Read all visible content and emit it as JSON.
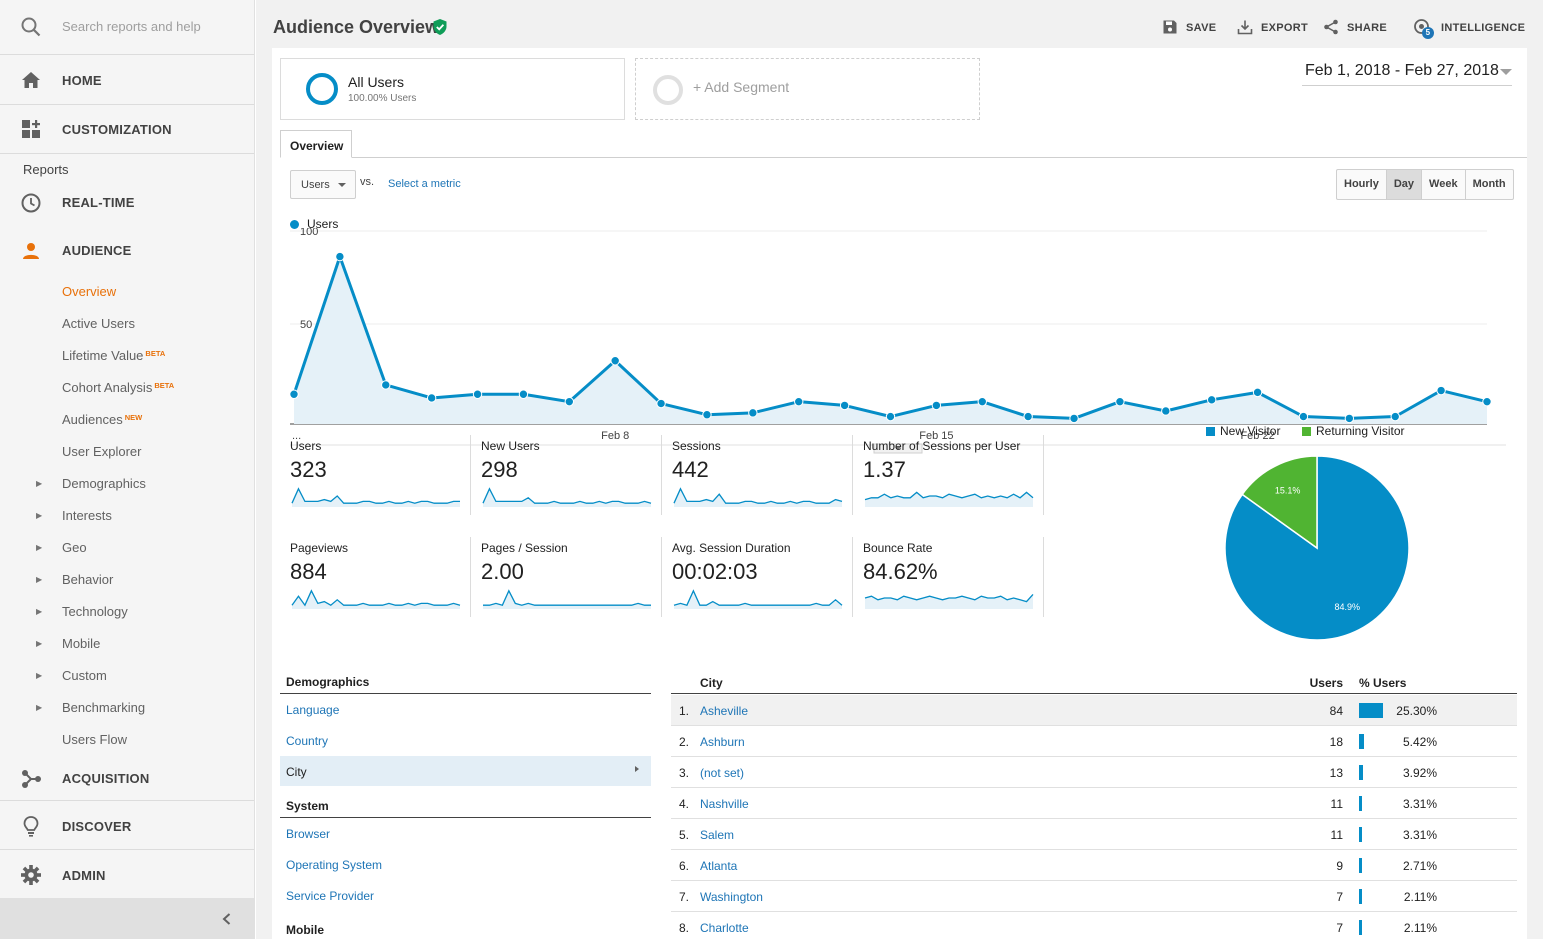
{
  "search": {
    "placeholder": "Search reports and help"
  },
  "nav": {
    "home": "HOME",
    "customization": "CUSTOMIZATION",
    "reports_label": "Reports",
    "realtime": "REAL-TIME",
    "audience": "AUDIENCE",
    "audience_items": {
      "overview": "Overview",
      "active_users": "Active Users",
      "lifetime_value": "Lifetime Value",
      "lifetime_value_badge": "BETA",
      "cohort_analysis": "Cohort Analysis",
      "cohort_analysis_badge": "BETA",
      "audiences": "Audiences",
      "audiences_badge": "NEW",
      "user_explorer": "User Explorer",
      "demographics": "Demographics",
      "interests": "Interests",
      "geo": "Geo",
      "behavior": "Behavior",
      "technology": "Technology",
      "mobile": "Mobile",
      "custom": "Custom",
      "benchmarking": "Benchmarking",
      "users_flow": "Users Flow"
    },
    "acquisition": "ACQUISITION",
    "discover": "DISCOVER",
    "admin": "ADMIN"
  },
  "header": {
    "title": "Audience Overview",
    "save": "SAVE",
    "export": "EXPORT",
    "share": "SHARE",
    "intelligence": "INTELLIGENCE",
    "intelligence_count": "5"
  },
  "segments": {
    "all_users": "All Users",
    "all_users_pct": "100.00% Users",
    "add_segment": "+ Add Segment"
  },
  "date_range": "Feb 1, 2018 - Feb 27, 2018",
  "tabs": {
    "overview": "Overview"
  },
  "controls": {
    "metric": "Users",
    "vs": "vs.",
    "select_metric": "Select a metric",
    "hourly": "Hourly",
    "day": "Day",
    "week": "Week",
    "month": "Month"
  },
  "colors": {
    "accent": "#058dc7",
    "new_visitor": "#058dc7",
    "returning_visitor": "#50b432",
    "nav_active": "#e8710a",
    "link": "#1e75b6"
  },
  "chart_data": [
    {
      "type": "area",
      "series": [
        {
          "name": "Users",
          "values": [
            16,
            90,
            21,
            14,
            16,
            16,
            12,
            34,
            11,
            5,
            6,
            12,
            10,
            4,
            10,
            12,
            4,
            3,
            12,
            7,
            13,
            17,
            4,
            3,
            4,
            18,
            12
          ]
        }
      ],
      "x": [
        "Feb 1",
        "Feb 2",
        "Feb 3",
        "Feb 4",
        "Feb 5",
        "Feb 6",
        "Feb 7",
        "Feb 8",
        "Feb 9",
        "Feb 10",
        "Feb 11",
        "Feb 12",
        "Feb 13",
        "Feb 14",
        "Feb 15",
        "Feb 16",
        "Feb 17",
        "Feb 18",
        "Feb 19",
        "Feb 20",
        "Feb 21",
        "Feb 22",
        "Feb 23",
        "Feb 24",
        "Feb 25",
        "Feb 26",
        "Feb 27"
      ],
      "xticks": [
        "...",
        "Feb 8",
        "Feb 15",
        "Feb 22"
      ],
      "yticks": [
        "100",
        "50"
      ],
      "ylim": [
        0,
        100
      ],
      "grid": true
    },
    {
      "type": "pie",
      "series": [
        {
          "name": "New Visitor",
          "value": 84.9,
          "label": "84.9%"
        },
        {
          "name": "Returning Visitor",
          "value": 15.1,
          "label": "15.1%"
        }
      ]
    }
  ],
  "metrics": [
    {
      "name": "Users",
      "value": "323",
      "spark": [
        1,
        9,
        2,
        2,
        2,
        3,
        2,
        5,
        1,
        1,
        1,
        2,
        2,
        1,
        1,
        2,
        1,
        1,
        2,
        1,
        2,
        2,
        1,
        1,
        1,
        2,
        2
      ]
    },
    {
      "name": "New Users",
      "value": "298",
      "spark": [
        1,
        9,
        2,
        2,
        2,
        2,
        2,
        4,
        1,
        1,
        1,
        2,
        1,
        1,
        1,
        2,
        1,
        1,
        2,
        1,
        2,
        2,
        1,
        1,
        1,
        2,
        1
      ]
    },
    {
      "name": "Sessions",
      "value": "442",
      "spark": [
        1,
        9,
        2,
        2,
        2,
        3,
        2,
        6,
        1,
        1,
        1,
        2,
        2,
        1,
        1,
        2,
        1,
        1,
        2,
        1,
        2,
        2,
        1,
        1,
        1,
        3,
        2
      ]
    },
    {
      "name": "Number of Sessions per User",
      "value": "1.37",
      "spark": [
        3,
        4,
        4,
        6,
        4,
        5,
        4,
        4,
        7,
        4,
        5,
        5,
        4,
        6,
        5,
        4,
        5,
        6,
        4,
        5,
        4,
        5,
        4,
        6,
        4,
        7,
        4
      ]
    },
    {
      "name": "Pageviews",
      "value": "884",
      "spark": [
        1,
        6,
        1,
        9,
        2,
        3,
        1,
        4,
        1,
        1,
        1,
        2,
        1,
        1,
        1,
        2,
        1,
        1,
        2,
        1,
        2,
        2,
        1,
        1,
        1,
        2,
        1
      ]
    },
    {
      "name": "Pages / Session",
      "value": "2.00",
      "spark": [
        1,
        1,
        2,
        1,
        9,
        2,
        1,
        2,
        1,
        1,
        1,
        1,
        1,
        1,
        1,
        1,
        1,
        1,
        1,
        1,
        1,
        1,
        1,
        1,
        2,
        1,
        1
      ]
    },
    {
      "name": "Avg. Session Duration",
      "value": "00:02:03",
      "spark": [
        1,
        2,
        1,
        9,
        1,
        1,
        3,
        1,
        1,
        1,
        1,
        2,
        1,
        1,
        1,
        1,
        1,
        1,
        1,
        1,
        1,
        1,
        2,
        1,
        1,
        4,
        1
      ]
    },
    {
      "name": "Bounce Rate",
      "value": "84.62%",
      "spark": [
        5,
        6,
        4,
        5,
        5,
        4,
        6,
        5,
        4,
        5,
        6,
        5,
        4,
        5,
        5,
        6,
        5,
        4,
        6,
        5,
        5,
        6,
        4,
        5,
        4,
        3,
        7
      ]
    }
  ],
  "dimensions": {
    "demographics": {
      "title": "Demographics",
      "items": [
        "Language",
        "Country"
      ],
      "selected": "City"
    },
    "system": {
      "title": "System",
      "items": [
        "Browser",
        "Operating System",
        "Service Provider"
      ]
    },
    "mobile": {
      "title": "Mobile"
    }
  },
  "city_table": {
    "headers": {
      "city": "City",
      "users": "Users",
      "pct": "% Users"
    },
    "rows": [
      {
        "rank": "1.",
        "city": "Asheville",
        "users": "84",
        "pct": "25.30%",
        "share": 25.3
      },
      {
        "rank": "2.",
        "city": "Ashburn",
        "users": "18",
        "pct": "5.42%",
        "share": 5.42
      },
      {
        "rank": "3.",
        "city": "(not set)",
        "users": "13",
        "pct": "3.92%",
        "share": 3.92
      },
      {
        "rank": "4.",
        "city": "Nashville",
        "users": "11",
        "pct": "3.31%",
        "share": 3.31
      },
      {
        "rank": "5.",
        "city": "Salem",
        "users": "11",
        "pct": "3.31%",
        "share": 3.31
      },
      {
        "rank": "6.",
        "city": "Atlanta",
        "users": "9",
        "pct": "2.71%",
        "share": 2.71
      },
      {
        "rank": "7.",
        "city": "Washington",
        "users": "7",
        "pct": "2.11%",
        "share": 2.11
      },
      {
        "rank": "8.",
        "city": "Charlotte",
        "users": "7",
        "pct": "2.11%",
        "share": 2.11
      }
    ]
  }
}
